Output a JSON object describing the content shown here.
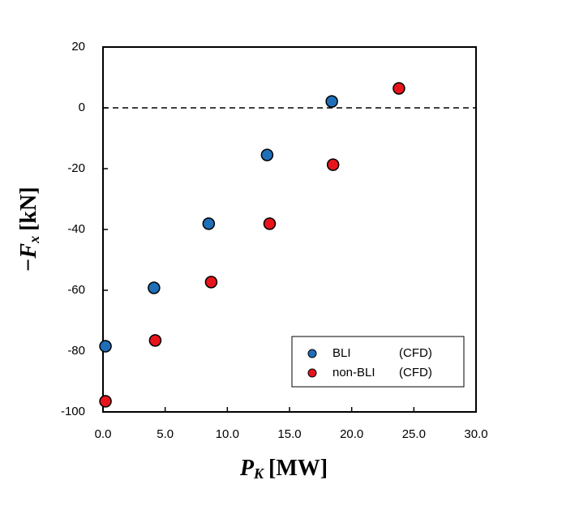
{
  "chart_data": {
    "type": "scatter",
    "x_label": {
      "symbol": "P",
      "sub": "K",
      "unit": "[MW]"
    },
    "y_label": {
      "symbol": "−F",
      "sub": "x",
      "unit": "[kN]"
    },
    "xlim": [
      0,
      30
    ],
    "ylim": [
      -100,
      20
    ],
    "xticks": [
      {
        "value": 0,
        "label": "0.0"
      },
      {
        "value": 5,
        "label": "5.0"
      },
      {
        "value": 10,
        "label": "10.0"
      },
      {
        "value": 15,
        "label": "15.0"
      },
      {
        "value": 20,
        "label": "20.0"
      },
      {
        "value": 25,
        "label": "25.0"
      },
      {
        "value": 30,
        "label": "30.0"
      }
    ],
    "yticks": [
      -100,
      -80,
      -60,
      -40,
      -20,
      0,
      20
    ],
    "reference_line": 0,
    "legend": "lower right",
    "series": [
      {
        "name": "BLI",
        "method": "(CFD)",
        "color": "#1f6fb8",
        "x": [
          0.2,
          4.1,
          8.5,
          13.2,
          18.4
        ],
        "values": [
          -78.4,
          -59.2,
          -38.1,
          -15.5,
          2.1
        ]
      },
      {
        "name": "non-BLI",
        "method": "(CFD)",
        "color": "#e8141c",
        "x": [
          0.2,
          4.2,
          8.7,
          13.4,
          18.5,
          23.8
        ],
        "values": [
          -96.5,
          -76.5,
          -57.3,
          -38.1,
          -18.7,
          6.4
        ]
      }
    ]
  }
}
